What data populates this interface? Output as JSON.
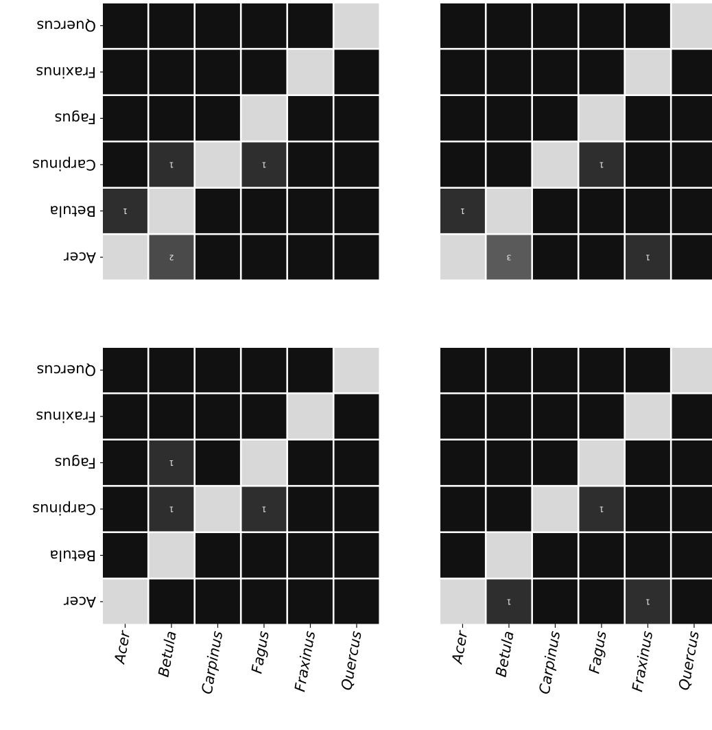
{
  "colors": {
    "background": "#ffffff",
    "dark": "#111111",
    "cell_1": "#2e2e2e",
    "cell_2": "#4a4a4a",
    "cell_3": "#5a5a5a",
    "diagonal": "#d8d8d8",
    "grid_line": "#ffffff",
    "tick": "#000000"
  },
  "chart_data": [
    {
      "type": "heatmap",
      "panel": "top-left",
      "rows": [
        "Quercus",
        "Fraxinus",
        "Fagus",
        "Carpinus",
        "Betula",
        "Acer"
      ],
      "columns": [
        "Acer",
        "Betula",
        "Carpinus",
        "Fagus",
        "Fraxinus",
        "Quercus"
      ],
      "values": [
        [
          0,
          0,
          0,
          0,
          0,
          null
        ],
        [
          0,
          0,
          0,
          0,
          null,
          0
        ],
        [
          0,
          0,
          0,
          null,
          0,
          0
        ],
        [
          0,
          1,
          null,
          1,
          0,
          0
        ],
        [
          1,
          null,
          0,
          0,
          0,
          0
        ],
        [
          null,
          2,
          0,
          0,
          0,
          0
        ]
      ]
    },
    {
      "type": "heatmap",
      "panel": "top-right",
      "rows": [
        "Quercus",
        "Fraxinus",
        "Fagus",
        "Carpinus",
        "Betula",
        "Acer"
      ],
      "columns": [
        "Acer",
        "Betula",
        "Carpinus",
        "Fagus",
        "Fraxinus",
        "Quercus"
      ],
      "values": [
        [
          0,
          0,
          0,
          0,
          0,
          null
        ],
        [
          0,
          0,
          0,
          0,
          null,
          0
        ],
        [
          0,
          0,
          0,
          null,
          0,
          0
        ],
        [
          0,
          0,
          null,
          1,
          0,
          0
        ],
        [
          1,
          null,
          0,
          0,
          0,
          0
        ],
        [
          null,
          3,
          0,
          0,
          1,
          0
        ]
      ]
    },
    {
      "type": "heatmap",
      "panel": "bottom-left",
      "rows": [
        "Quercus",
        "Fraxinus",
        "Fagus",
        "Carpinus",
        "Betula",
        "Acer"
      ],
      "columns": [
        "Acer",
        "Betula",
        "Carpinus",
        "Fagus",
        "Fraxinus",
        "Quercus"
      ],
      "values": [
        [
          0,
          0,
          0,
          0,
          0,
          null
        ],
        [
          0,
          0,
          0,
          0,
          null,
          0
        ],
        [
          0,
          1,
          0,
          null,
          0,
          0
        ],
        [
          0,
          1,
          null,
          1,
          0,
          0
        ],
        [
          0,
          null,
          0,
          0,
          0,
          0
        ],
        [
          null,
          0,
          0,
          0,
          0,
          0
        ]
      ]
    },
    {
      "type": "heatmap",
      "panel": "bottom-right",
      "rows": [
        "Quercus",
        "Fraxinus",
        "Fagus",
        "Carpinus",
        "Betula",
        "Acer"
      ],
      "columns": [
        "Acer",
        "Betula",
        "Carpinus",
        "Fagus",
        "Fraxinus",
        "Quercus"
      ],
      "values": [
        [
          0,
          0,
          0,
          0,
          0,
          null
        ],
        [
          0,
          0,
          0,
          0,
          null,
          0
        ],
        [
          0,
          0,
          0,
          null,
          0,
          0
        ],
        [
          0,
          0,
          null,
          1,
          0,
          0
        ],
        [
          0,
          null,
          0,
          0,
          0,
          0
        ],
        [
          null,
          1,
          0,
          0,
          1,
          0
        ]
      ]
    }
  ]
}
